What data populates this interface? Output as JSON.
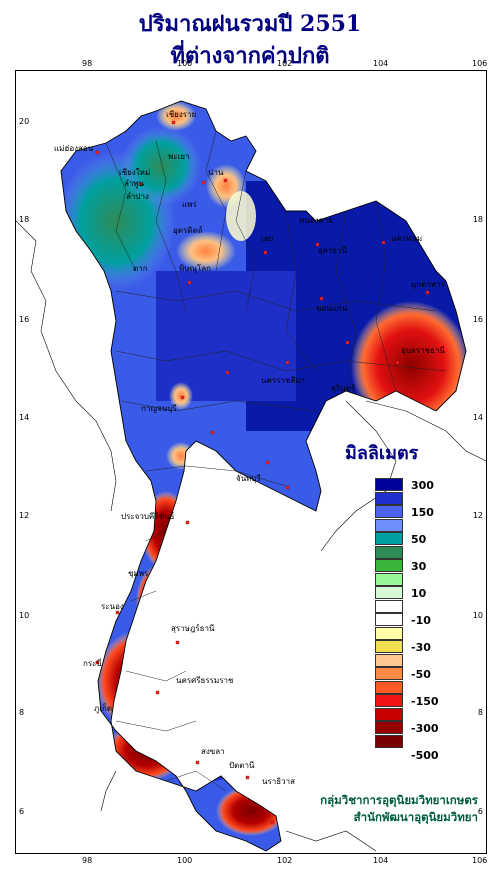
{
  "title": {
    "line1": "ปริมาณฝนรวมปี  2551",
    "line2": "ที่ต่างจากค่าปกติ"
  },
  "axes": {
    "longitude_ticks": [
      "98",
      "100",
      "102",
      "104",
      "106"
    ],
    "latitude_ticks": [
      "20",
      "18",
      "16",
      "14",
      "12",
      "10",
      "8",
      "6"
    ]
  },
  "legend": {
    "title": "มิลลิเมตร",
    "labels": [
      "300",
      "150",
      "50",
      "30",
      "10",
      "-10",
      "-30",
      "-50",
      "-150",
      "-300",
      "-500"
    ],
    "colors": [
      "#00009a",
      "#1e2fd0",
      "#4a63f0",
      "#6e8ffb",
      "#00a0a0",
      "#2e8b57",
      "#3cb43c",
      "#98f898",
      "#d6f8d6",
      "#ffffff",
      "#ffffff",
      "#ffffa8",
      "#f0e050",
      "#ffc890",
      "#ff8c46",
      "#ff5a28",
      "#f01414",
      "#c80000",
      "#960000",
      "#780000"
    ]
  },
  "credits": {
    "line1": "กลุ่มวิชาการอุตุนิยมวิทยาเกษตร",
    "line2": "สำนักพัฒนาอุตุนิยมวิทยา"
  },
  "provinces": [
    {
      "name": "เชียงราย"
    },
    {
      "name": "แม่ฮ่องสอน"
    },
    {
      "name": "เชียงใหม่"
    },
    {
      "name": "ลำพูน"
    },
    {
      "name": "พะเยา"
    },
    {
      "name": "น่าน"
    },
    {
      "name": "ลำปาง"
    },
    {
      "name": "แพร่"
    },
    {
      "name": "อุตรดิตถ์"
    },
    {
      "name": "หนองคาย"
    },
    {
      "name": "นครพนม"
    },
    {
      "name": "ตาก"
    },
    {
      "name": "เลย"
    },
    {
      "name": "พิษณุโลก"
    },
    {
      "name": "มุกดาหาร"
    },
    {
      "name": "อุบลราชธานี"
    },
    {
      "name": "กาญจนบุรี"
    },
    {
      "name": "จันทบุรี"
    },
    {
      "name": "ประจวบคีรีขันธ์"
    },
    {
      "name": "ระนอง"
    },
    {
      "name": "นครศรีธรรมราช"
    },
    {
      "name": "สงขลา"
    },
    {
      "name": "ปัตตานี"
    },
    {
      "name": "นราธิวาส"
    },
    {
      "name": "ภูเก็ต"
    },
    {
      "name": "กระบี่"
    },
    {
      "name": "สุราษฎร์ธานี"
    },
    {
      "name": "ชุมพร"
    },
    {
      "name": "นครราชสีมา"
    },
    {
      "name": "สุรินทร์"
    },
    {
      "name": "ขอนแก่น"
    },
    {
      "name": "อุดรธานี"
    }
  ]
}
